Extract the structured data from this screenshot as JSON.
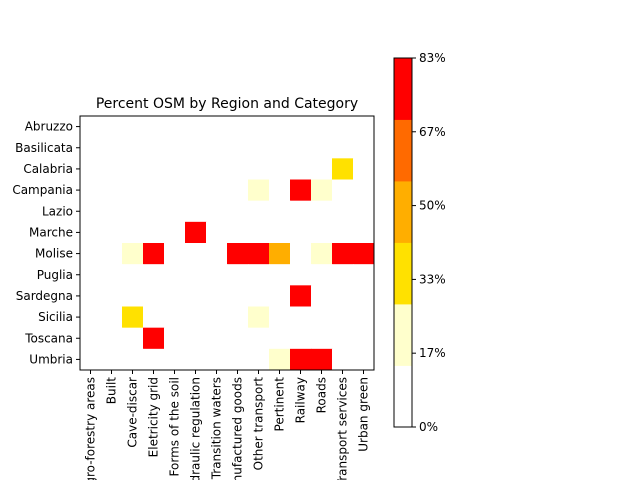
{
  "chart_data": {
    "type": "heatmap",
    "title": "Percent OSM by Region and Category",
    "rows": [
      "Abruzzo",
      "Basilicata",
      "Calabria",
      "Campania",
      "Lazio",
      "Marche",
      "Molise",
      "Puglia",
      "Sardegna",
      "Sicilia",
      "Toscana",
      "Umbria"
    ],
    "columns": [
      "Agro-forestry areas",
      "Built",
      "Cave-discar",
      "Eletricity grid",
      "Forms of the soil",
      "Hydraulic regulation",
      "Transition waters",
      "Manufactured goods",
      "Other transport",
      "Pertinent",
      "Railway",
      "Roads",
      "Transport services",
      "Urban green"
    ],
    "visible_column_labels": [
      "Agro-forestry areas",
      "Built",
      "Cave-discar",
      "Eletricity grid",
      "Forms of the soil",
      "Hydraulic regulation",
      "Transition waters",
      "Manufactured goods",
      "Other transport",
      "Pertinent",
      "Railway",
      "Roads",
      "Transport services",
      "Urban green"
    ],
    "values": [
      [
        0,
        0,
        0,
        0,
        0,
        0,
        0,
        0,
        0,
        0,
        0,
        0,
        0,
        0
      ],
      [
        0,
        0,
        0,
        0,
        0,
        0,
        0,
        0,
        0,
        0,
        0,
        0,
        0,
        0
      ],
      [
        0,
        0,
        0,
        0,
        0,
        0,
        0,
        0,
        0,
        0,
        0,
        0,
        36,
        0
      ],
      [
        0,
        0,
        0,
        0,
        0,
        0,
        0,
        0,
        20,
        0,
        80,
        20,
        0,
        0
      ],
      [
        0,
        0,
        0,
        0,
        0,
        0,
        0,
        0,
        0,
        0,
        0,
        0,
        0,
        0
      ],
      [
        0,
        0,
        0,
        0,
        0,
        70,
        0,
        0,
        0,
        0,
        0,
        0,
        0,
        0
      ],
      [
        0,
        0,
        20,
        80,
        0,
        0,
        0,
        70,
        80,
        55,
        0,
        20,
        80,
        80
      ],
      [
        0,
        0,
        0,
        0,
        0,
        0,
        0,
        0,
        0,
        0,
        0,
        0,
        0,
        0
      ],
      [
        0,
        0,
        0,
        0,
        0,
        0,
        0,
        0,
        0,
        0,
        80,
        0,
        0,
        0
      ],
      [
        0,
        0,
        36,
        0,
        0,
        0,
        0,
        0,
        20,
        0,
        0,
        0,
        0,
        0
      ],
      [
        0,
        0,
        0,
        80,
        0,
        0,
        0,
        0,
        0,
        0,
        0,
        0,
        0,
        0
      ],
      [
        0,
        0,
        0,
        0,
        0,
        0,
        0,
        0,
        0,
        20,
        80,
        80,
        0,
        0
      ]
    ],
    "vmin": 0,
    "vmax": 83.33,
    "colorbar": {
      "ticks": [
        0,
        16.67,
        33.33,
        50,
        66.67,
        83.33
      ],
      "tick_labels": [
        "0%",
        "17%",
        "33%",
        "50%",
        "67%",
        "83%"
      ],
      "colors": [
        "#ffffff",
        "#ffffcc",
        "#ffe100",
        "#ffae00",
        "#ff6a00",
        "#ff0000"
      ]
    },
    "grid": false
  }
}
